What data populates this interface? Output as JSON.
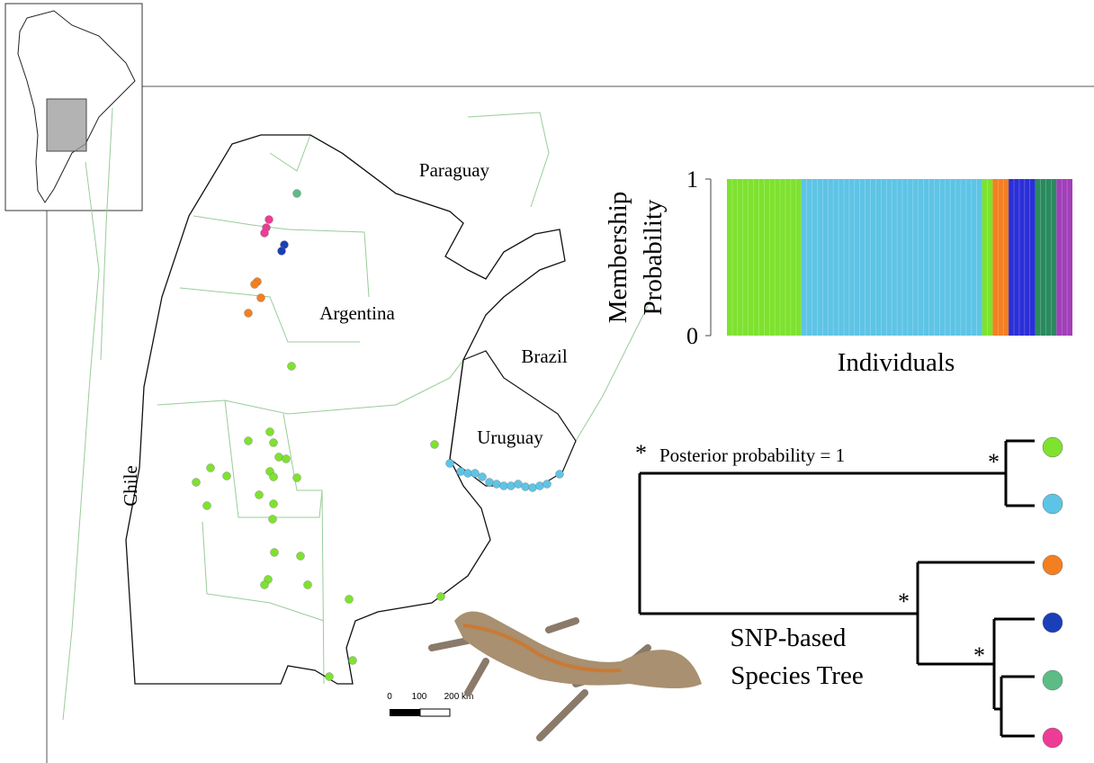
{
  "map": {
    "labels": [
      "Paraguay",
      "Argentina",
      "Brazil",
      "Uruguay",
      "Chile"
    ],
    "scale_bar": [
      "0",
      "100",
      "200 km"
    ]
  },
  "structure_plot": {
    "ylabel": [
      "Membership",
      "Probability"
    ],
    "xlabel": "Individuals",
    "ylim": [
      0,
      1
    ],
    "yticks": [
      0,
      1
    ],
    "clusters": [
      {
        "color": "#7ee22f",
        "individuals": 14
      },
      {
        "color": "#5ec4e6",
        "individuals": 34
      },
      {
        "color": "#7ee22f",
        "individuals": 2
      },
      {
        "color": "#f47f20",
        "individuals": 3
      },
      {
        "color": "#2b2fd8",
        "individuals": 5
      },
      {
        "color": "#2a8a5e",
        "individuals": 4
      },
      {
        "color": "#a13fb8",
        "individuals": 3
      }
    ]
  },
  "tree": {
    "title": [
      "SNP-based",
      "Species Tree"
    ],
    "support_marker": "*",
    "legend": "Posterior probability = 1",
    "tips": [
      {
        "color": "#7ee22f"
      },
      {
        "color": "#5ec4e6"
      },
      {
        "color": "#f47f20"
      },
      {
        "color": "#1a3fb8"
      },
      {
        "color": "#5dbb86"
      },
      {
        "color": "#ee3b96"
      }
    ]
  }
}
